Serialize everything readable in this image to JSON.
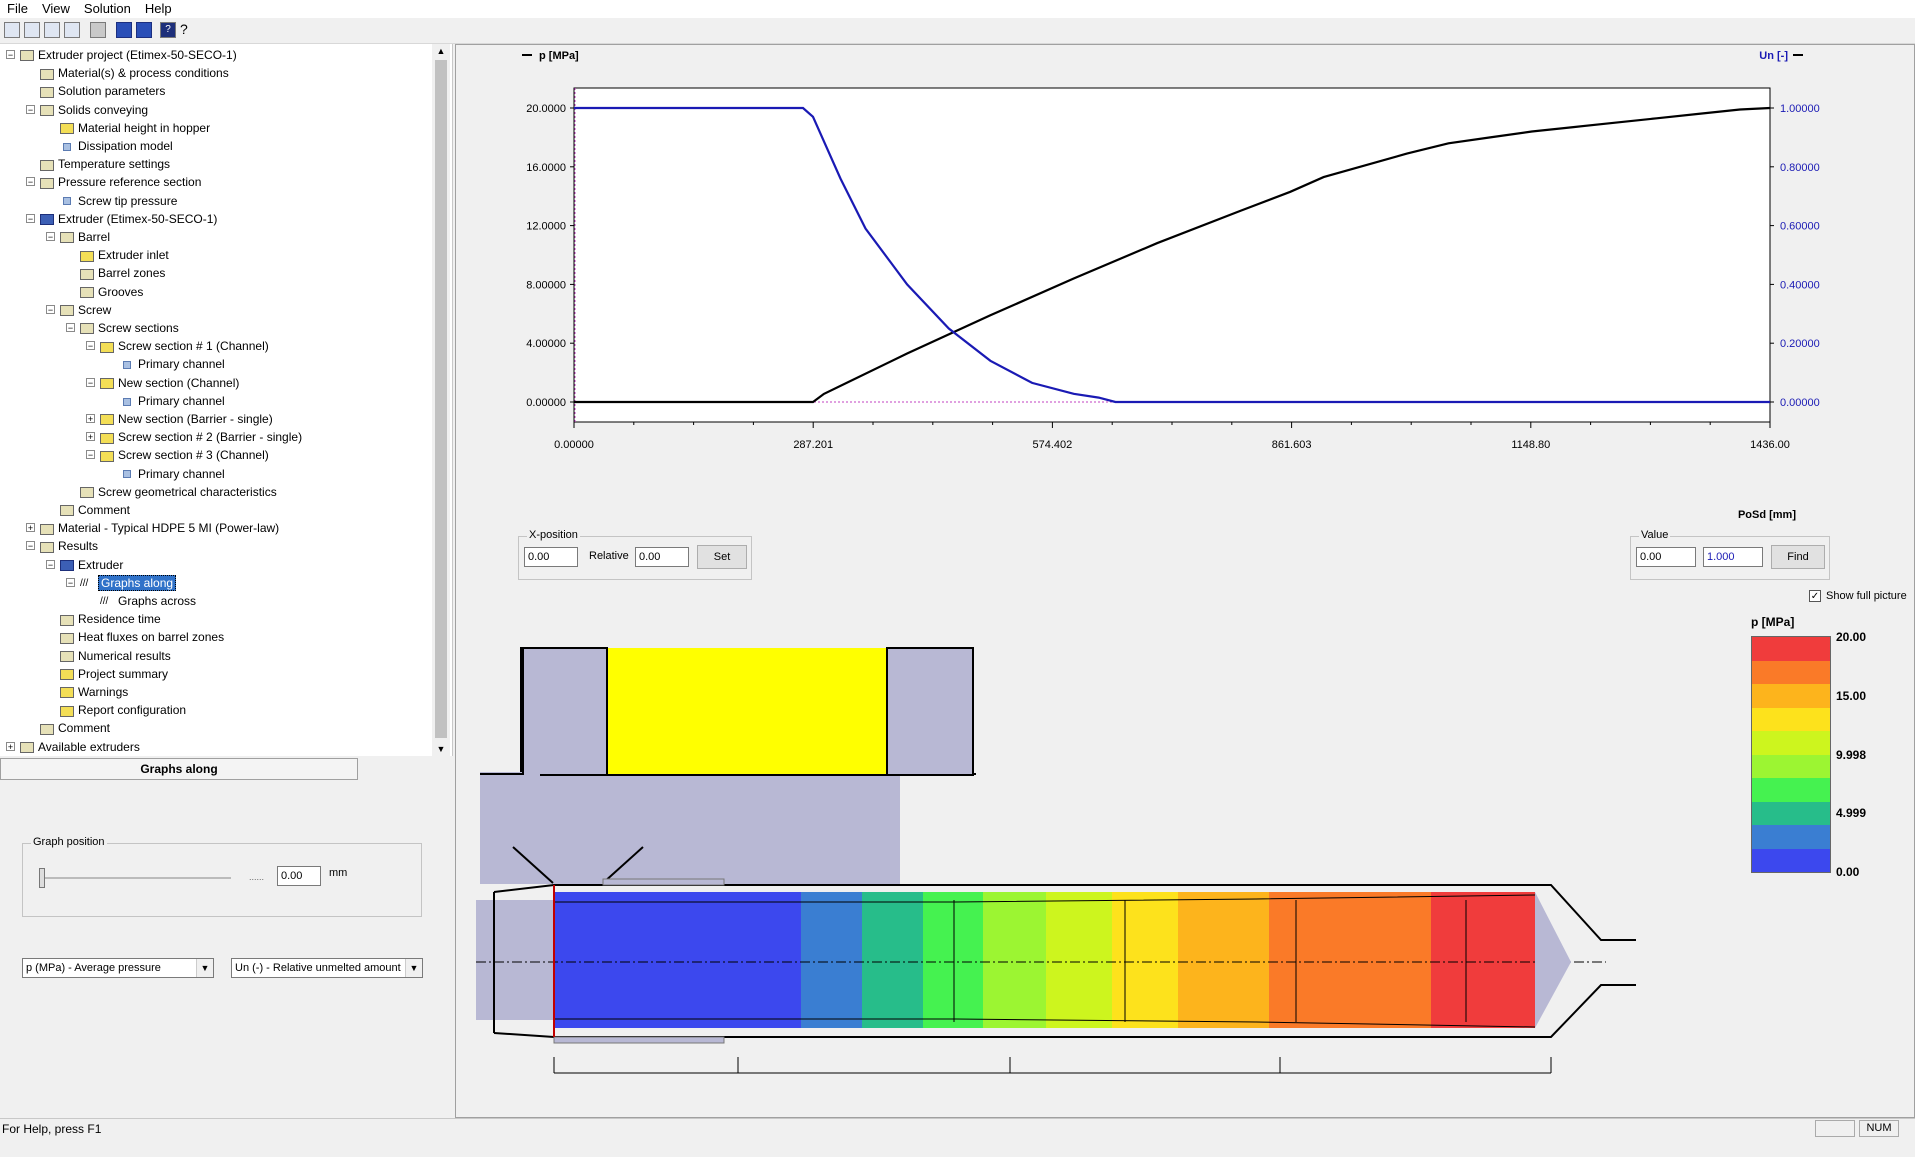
{
  "menu": [
    "File",
    "View",
    "Solution",
    "Help"
  ],
  "tree": [
    {
      "label": "Extruder project (Etimex-50-SECO-1)",
      "level": 0,
      "expander": "-",
      "icon": "folder"
    },
    {
      "label": "Material(s) & process conditions",
      "level": 1,
      "icon": "folder"
    },
    {
      "label": "Solution parameters",
      "level": 1,
      "icon": "folder"
    },
    {
      "label": "Solids conveying",
      "level": 1,
      "expander": "-",
      "icon": "folder"
    },
    {
      "label": "Material height in hopper",
      "level": 2,
      "icon": "yellow"
    },
    {
      "label": "Dissipation model",
      "level": 2,
      "icon": "small"
    },
    {
      "label": "Temperature settings",
      "level": 1,
      "icon": "folder"
    },
    {
      "label": "Pressure reference section",
      "level": 1,
      "expander": "-",
      "icon": "folder"
    },
    {
      "label": "Screw tip pressure",
      "level": 2,
      "icon": "small"
    },
    {
      "label": "Extruder (Etimex-50-SECO-1)",
      "level": 1,
      "expander": "-",
      "icon": "blue"
    },
    {
      "label": "Barrel",
      "level": 2,
      "expander": "-",
      "icon": "folder"
    },
    {
      "label": "Extruder inlet",
      "level": 3,
      "icon": "yellow"
    },
    {
      "label": "Barrel zones",
      "level": 3,
      "icon": "folder"
    },
    {
      "label": "Grooves",
      "level": 3,
      "icon": "folder"
    },
    {
      "label": "Screw",
      "level": 2,
      "expander": "-",
      "icon": "folder"
    },
    {
      "label": "Screw sections",
      "level": 3,
      "expander": "-",
      "icon": "folder"
    },
    {
      "label": "Screw section # 1 (Channel)",
      "level": 4,
      "expander": "-",
      "icon": "yellow"
    },
    {
      "label": "Primary channel",
      "level": 5,
      "icon": "small"
    },
    {
      "label": "New section (Channel)",
      "level": 4,
      "expander": "-",
      "icon": "yellow"
    },
    {
      "label": "Primary channel",
      "level": 5,
      "icon": "small"
    },
    {
      "label": "New section (Barrier - single)",
      "level": 4,
      "expander": "+",
      "icon": "yellow"
    },
    {
      "label": "Screw section # 2 (Barrier - single)",
      "level": 4,
      "expander": "+",
      "icon": "yellow"
    },
    {
      "label": "Screw section # 3 (Channel)",
      "level": 4,
      "expander": "-",
      "icon": "yellow"
    },
    {
      "label": "Primary channel",
      "level": 5,
      "icon": "small"
    },
    {
      "label": "Screw geometrical characteristics",
      "level": 3,
      "icon": "folder"
    },
    {
      "label": "Comment",
      "level": 2,
      "icon": "folder"
    },
    {
      "label": "Material - Typical HDPE 5 MI (Power-law)",
      "level": 1,
      "expander": "+",
      "icon": "folder"
    },
    {
      "label": "Results",
      "level": 1,
      "expander": "-",
      "icon": "folder"
    },
    {
      "label": "Extruder",
      "level": 2,
      "expander": "-",
      "icon": "blue"
    },
    {
      "label": "Graphs along",
      "level": 3,
      "expander": "-",
      "icon": "graph",
      "selected": true
    },
    {
      "label": "Graphs across",
      "level": 4,
      "icon": "graph"
    },
    {
      "label": "Residence time",
      "level": 2,
      "icon": "folder"
    },
    {
      "label": "Heat fluxes on barrel zones",
      "level": 2,
      "icon": "folder"
    },
    {
      "label": "Numerical results",
      "level": 2,
      "icon": "folder"
    },
    {
      "label": "Project summary",
      "level": 2,
      "icon": "yellow"
    },
    {
      "label": "Warnings",
      "level": 2,
      "icon": "yellow"
    },
    {
      "label": "Report configuration",
      "level": 2,
      "icon": "yellow"
    },
    {
      "label": "Comment",
      "level": 1,
      "icon": "folder"
    },
    {
      "label": "Available extruders",
      "level": 0,
      "expander": "+",
      "icon": "folder"
    }
  ],
  "panel": {
    "title": "Graphs along",
    "graph_position_label": "Graph position",
    "graph_position_value": "0.00",
    "graph_position_unit": "mm",
    "graph_position_fraction": 0.0,
    "dropdown_left": "p (MPa) - Average pressure",
    "dropdown_right": "Un (-) - Relative unmelted amount"
  },
  "xpos": {
    "group_label": "X-position",
    "value": "0.00",
    "relative_label": "Relative",
    "relative_value": "0.00",
    "set_label": "Set"
  },
  "find": {
    "group_label": "Value",
    "value": "0.00",
    "value2": "1.000",
    "find_label": "Find"
  },
  "show_full_picture": "Show full picture",
  "status": {
    "help": "For Help, press F1",
    "num": "NUM"
  },
  "legend": {
    "title": "p [MPa]",
    "ticks": [
      "20.00",
      "15.00",
      "9.998",
      "4.999",
      "0.00"
    ],
    "colors": [
      "#f03c3c",
      "#fa7a28",
      "#fdb41c",
      "#fde21c",
      "#cdf51e",
      "#9cf532",
      "#45f250",
      "#27bd8a",
      "#3a7ed2",
      "#3c48ee"
    ]
  },
  "chart_data": {
    "type": "line",
    "xlabel": "PoSd [mm]",
    "xlim": [
      0,
      1436
    ],
    "x_ticks": [
      "0.00000",
      "287.201",
      "574.402",
      "861.603",
      "1148.80",
      "1436.00"
    ],
    "y_left": {
      "label": "p [MPa]",
      "lim": [
        0,
        20
      ],
      "ticks": [
        "0.00000",
        "4.00000",
        "8.00000",
        "12.0000",
        "16.0000",
        "20.0000"
      ]
    },
    "y_right": {
      "label": "Un [-]",
      "lim": [
        0,
        1
      ],
      "ticks": [
        "0.00000",
        "0.20000",
        "0.40000",
        "0.60000",
        "0.80000",
        "1.00000"
      ]
    },
    "series": [
      {
        "name": "p [MPa]",
        "axis": "left",
        "color": "#000000",
        "x": [
          0,
          287,
          300,
          400,
          500,
          600,
          700,
          800,
          860,
          900,
          1000,
          1050,
          1100,
          1150,
          1200,
          1250,
          1300,
          1350,
          1400,
          1436
        ],
        "y": [
          0,
          0,
          0.55,
          3.3,
          5.9,
          8.4,
          10.8,
          13.0,
          14.3,
          15.3,
          16.9,
          17.6,
          18.0,
          18.4,
          18.7,
          19.0,
          19.3,
          19.6,
          19.9,
          20.0
        ]
      },
      {
        "name": "Un [-]",
        "axis": "right",
        "color": "#1a1ab4",
        "x": [
          0,
          275,
          287,
          320,
          350,
          400,
          450,
          500,
          550,
          600,
          630,
          650,
          1436
        ],
        "y": [
          1.0,
          1.0,
          0.97,
          0.76,
          0.59,
          0.4,
          0.25,
          0.14,
          0.065,
          0.028,
          0.015,
          0.0,
          0.0
        ]
      }
    ]
  }
}
